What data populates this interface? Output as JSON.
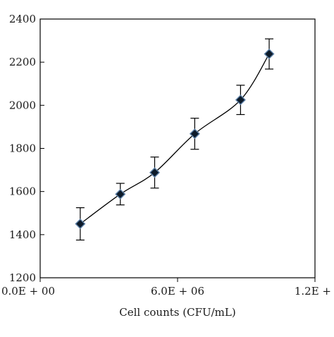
{
  "chart_data": {
    "type": "line",
    "title": "",
    "xlabel": "Cell counts (CFU/mL)",
    "ylabel": "",
    "xlim": [
      0,
      12000000
    ],
    "ylim": [
      1200,
      2400
    ],
    "x_ticks": [
      0,
      6000000,
      12000000
    ],
    "x_tick_labels": [
      "0.0E + 00",
      "6.0E + 06",
      "1.2E +"
    ],
    "y_ticks": [
      1200,
      1400,
      1600,
      1800,
      2000,
      2200,
      2400
    ],
    "y_tick_labels": [
      "1200",
      "1400",
      "1600",
      "1800",
      "2000",
      "2200",
      "2400"
    ],
    "grid": false,
    "legend": "none",
    "line_style": "smooth",
    "marker": "diamond",
    "marker_color": "#0d1b2a",
    "marker_edge_color": "#5b7fa6",
    "line_color": "#000000",
    "series": [
      {
        "x": [
          1750000,
          3500000,
          5000000,
          6750000,
          8750000,
          10000000
        ],
        "y": [
          1450,
          1588,
          1688,
          1868,
          2025,
          2238
        ],
        "error": [
          75,
          50,
          72,
          72,
          68,
          70
        ]
      }
    ]
  }
}
